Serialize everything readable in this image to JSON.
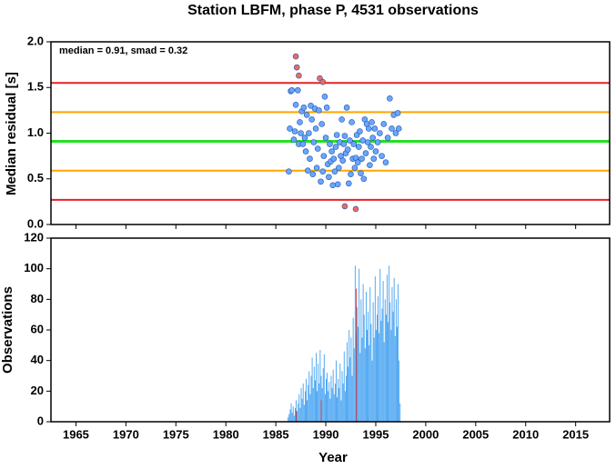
{
  "chart_data": [
    {
      "type": "scatter",
      "title": "Station LBFM, phase P, 4531 observations",
      "ylabel": "Median residual [s]",
      "annotation": "median = 0.91, smad = 0.32",
      "xlim": [
        1962.5,
        2018.4
      ],
      "ylim": [
        0,
        2
      ],
      "yticks": [
        {
          "value": 0,
          "label": "0.0"
        },
        0.5,
        {
          "value": 1,
          "label": "1.0"
        },
        1.5,
        {
          "value": 2,
          "label": "2.0"
        }
      ],
      "reference_lines": [
        {
          "value": 0.27,
          "color": "#e8202a"
        },
        {
          "value": 0.59,
          "color": "#ffa500"
        },
        {
          "value": 0.91,
          "color": "#22e022"
        },
        {
          "value": 1.23,
          "color": "#ffa500"
        },
        {
          "value": 1.55,
          "color": "#e8202a"
        }
      ],
      "series": [
        {
          "color": "#6aa6ff",
          "x": [
            1986.3,
            1986.4,
            1986.5,
            1986.6,
            1986.8,
            1986.9,
            1987.0,
            1987.2,
            1987.3,
            1987.4,
            1987.5,
            1987.6,
            1987.7,
            1987.8,
            1987.9,
            1988.0,
            1988.1,
            1988.2,
            1988.3,
            1988.4,
            1988.5,
            1988.6,
            1988.7,
            1988.8,
            1988.9,
            1989.0,
            1989.1,
            1989.2,
            1989.3,
            1989.5,
            1989.6,
            1989.7,
            1989.8,
            1989.9,
            1990.0,
            1990.1,
            1990.2,
            1990.3,
            1990.4,
            1990.5,
            1990.6,
            1990.7,
            1990.8,
            1990.9,
            1991.0,
            1991.1,
            1991.2,
            1991.3,
            1991.4,
            1991.5,
            1991.6,
            1991.7,
            1991.8,
            1991.9,
            1992.0,
            1992.1,
            1992.2,
            1992.3,
            1992.4,
            1992.5,
            1992.6,
            1992.7,
            1992.8,
            1992.9,
            1993.0,
            1993.1,
            1993.2,
            1993.3,
            1993.4,
            1993.5,
            1993.6,
            1993.7,
            1993.8,
            1993.9,
            1994.0,
            1994.1,
            1994.2,
            1994.3,
            1994.4,
            1994.5,
            1994.6,
            1994.7,
            1994.8,
            1994.9,
            1995.0,
            1995.2,
            1995.4,
            1995.6,
            1995.8,
            1996.0,
            1996.2,
            1996.4,
            1996.6,
            1996.8,
            1997.0,
            1997.2,
            1997.3
          ],
          "values": [
            0.58,
            1.05,
            1.46,
            1.47,
            0.93,
            1.02,
            1.31,
            1.47,
            0.88,
            1.12,
            1.0,
            1.24,
            0.88,
            1.28,
            0.95,
            0.8,
            1.2,
            0.59,
            1.0,
            0.72,
            1.3,
            1.15,
            0.55,
            0.9,
            1.27,
            1.05,
            0.62,
            0.83,
            1.25,
            0.47,
            1.1,
            0.58,
            0.75,
            1.4,
            0.95,
            1.28,
            0.66,
            0.52,
            0.88,
            0.69,
            0.8,
            0.43,
            0.72,
            0.58,
            0.85,
            0.98,
            0.44,
            0.62,
            0.9,
            0.75,
            1.15,
            0.7,
            0.88,
            0.97,
            0.78,
            1.28,
            0.82,
            0.45,
            0.92,
            0.55,
            1.12,
            0.72,
            0.88,
            0.62,
            0.73,
            0.98,
            0.68,
            0.85,
            1.02,
            0.56,
            0.72,
            0.92,
            0.5,
            1.15,
            0.78,
            1.1,
            0.9,
            1.05,
            0.65,
            0.85,
            1.12,
            0.95,
            0.72,
            1.05,
            0.8,
            0.9,
            1.0,
            0.75,
            1.1,
            0.68,
            0.95,
            1.38,
            1.05,
            1.2,
            1.0,
            1.22,
            1.05
          ]
        },
        {
          "color": "#f06a5a",
          "x": [
            1987.0,
            1987.1,
            1987.3,
            1989.4,
            1989.7,
            1991.9,
            1993.0
          ],
          "values": [
            1.84,
            1.72,
            1.63,
            1.6,
            1.56,
            0.2,
            0.17
          ]
        }
      ]
    },
    {
      "type": "histogram",
      "xlabel": "Year",
      "ylabel": "Observations",
      "xlim": [
        1962.5,
        2018.4
      ],
      "ylim": [
        0,
        120
      ],
      "yticks": [
        0,
        20,
        40,
        60,
        80,
        100,
        120
      ],
      "xticks": [
        1965,
        1970,
        1975,
        1980,
        1985,
        1990,
        1995,
        2000,
        2005,
        2010,
        2015
      ],
      "bins": [
        1986.2,
        1986.3,
        1986.4,
        1986.5,
        1986.6,
        1986.7,
        1986.8,
        1986.9,
        1987.0,
        1987.1,
        1987.2,
        1987.3,
        1987.4,
        1987.5,
        1987.6,
        1987.7,
        1987.8,
        1987.9,
        1988.0,
        1988.1,
        1988.2,
        1988.3,
        1988.4,
        1988.5,
        1988.6,
        1988.7,
        1988.8,
        1988.9,
        1989.0,
        1989.1,
        1989.2,
        1989.3,
        1989.4,
        1989.5,
        1989.6,
        1989.7,
        1989.8,
        1989.9,
        1990.0,
        1990.1,
        1990.2,
        1990.3,
        1990.4,
        1990.5,
        1990.6,
        1990.7,
        1990.8,
        1990.9,
        1991.0,
        1991.1,
        1991.2,
        1991.3,
        1991.4,
        1991.5,
        1991.6,
        1991.7,
        1991.8,
        1991.9,
        1992.0,
        1992.1,
        1992.2,
        1992.3,
        1992.4,
        1992.5,
        1992.6,
        1992.7,
        1992.8,
        1992.9,
        1993.0,
        1993.1,
        1993.2,
        1993.3,
        1993.4,
        1993.5,
        1993.6,
        1993.7,
        1993.8,
        1993.9,
        1994.0,
        1994.1,
        1994.2,
        1994.3,
        1994.4,
        1994.5,
        1994.6,
        1994.7,
        1994.8,
        1994.9,
        1995.0,
        1995.1,
        1995.2,
        1995.3,
        1995.4,
        1995.5,
        1995.6,
        1995.7,
        1995.8,
        1995.9,
        1996.0,
        1996.1,
        1996.2,
        1996.3,
        1996.4,
        1996.5,
        1996.6,
        1996.7,
        1996.8,
        1996.9,
        1997.0,
        1997.1,
        1997.2,
        1997.3,
        1997.4,
        1997.5
      ],
      "series": [
        {
          "color": "#3399f0",
          "values": [
            3,
            5,
            8,
            12,
            6,
            10,
            4,
            9,
            14,
            7,
            12,
            18,
            9,
            22,
            15,
            25,
            11,
            20,
            28,
            14,
            24,
            33,
            18,
            30,
            42,
            22,
            36,
            27,
            45,
            20,
            38,
            25,
            47,
            30,
            22,
            35,
            44,
            18,
            28,
            32,
            20,
            26,
            15,
            30,
            22,
            34,
            18,
            25,
            40,
            16,
            28,
            22,
            38,
            14,
            33,
            25,
            46,
            20,
            30,
            52,
            36,
            60,
            42,
            55,
            30,
            68,
            48,
            102,
            58,
            75,
            62,
            100,
            45,
            80,
            55,
            90,
            70,
            48,
            85,
            60,
            72,
            50,
            88,
            64,
            40,
            78,
            55,
            95,
            60,
            70,
            82,
            58,
            100,
            66,
            74,
            92,
            52,
            80,
            70,
            96,
            65,
            102,
            78,
            60,
            88,
            72,
            94,
            56,
            80,
            62,
            90,
            40,
            12
          ]
        }
      ],
      "highlight": {
        "color": "#c0303a",
        "x": [
          1987.0,
          1989.5,
          1993.0
        ],
        "values": [
          7,
          14,
          87
        ]
      }
    }
  ]
}
